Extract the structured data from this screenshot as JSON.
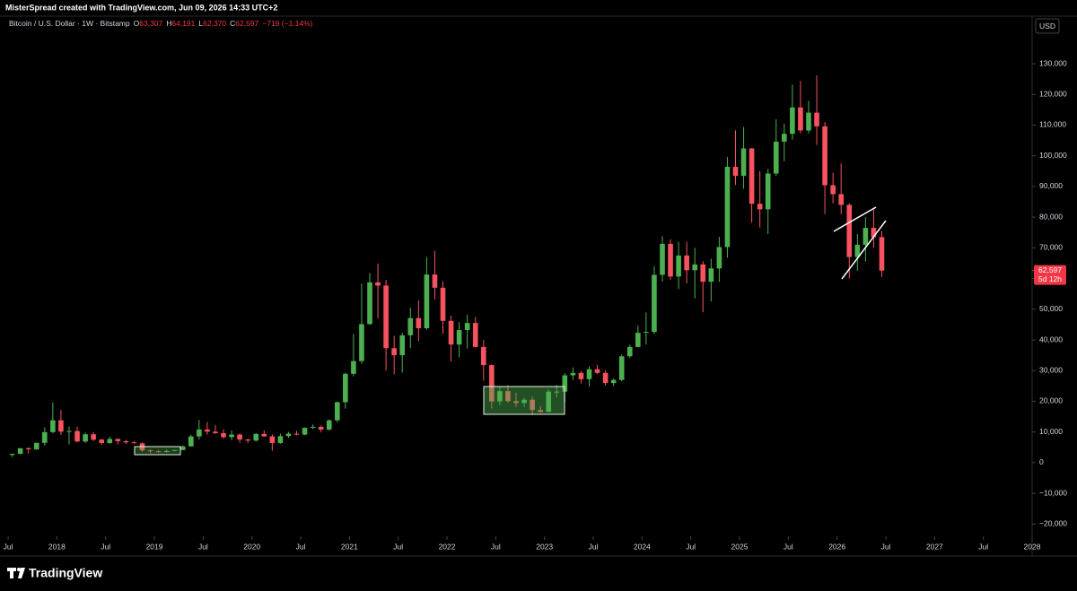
{
  "header": "MisterSpread created with TradingView.com, Jun 09, 2026 14:33 UTC+2",
  "footer": {
    "brand": "TradingView"
  },
  "chart_data": {
    "type": "candlestick",
    "symbol": "Bitcoin / U.S. Dollar · 1W · Bitstamp",
    "ohlc_legend": [
      {
        "key": "O",
        "value": "63,307"
      },
      {
        "key": "H",
        "value": "64,191"
      },
      {
        "key": "L",
        "value": "62,370"
      },
      {
        "key": "C",
        "value": "62,597"
      }
    ],
    "change": "−719 (−1.14%)",
    "currency": "USD",
    "last_price_label": "62,597",
    "countdown": "5d 12h",
    "up_color": "#4caf50",
    "down_color": "#f7525f",
    "x": [
      "2017-07",
      "2017-08",
      "2017-09",
      "2017-10",
      "2017-11",
      "2017-12",
      "2018-01",
      "2018-02",
      "2018-03",
      "2018-04",
      "2018-05",
      "2018-06",
      "2018-07",
      "2018-08",
      "2018-09",
      "2018-10",
      "2018-11",
      "2018-12",
      "2019-01",
      "2019-02",
      "2019-03",
      "2019-04",
      "2019-05",
      "2019-06",
      "2019-07",
      "2019-08",
      "2019-09",
      "2019-10",
      "2019-11",
      "2019-12",
      "2020-01",
      "2020-02",
      "2020-03",
      "2020-04",
      "2020-05",
      "2020-06",
      "2020-07",
      "2020-08",
      "2020-09",
      "2020-10",
      "2020-11",
      "2020-12",
      "2021-01",
      "2021-02",
      "2021-03",
      "2021-04",
      "2021-05",
      "2021-06",
      "2021-07",
      "2021-08",
      "2021-09",
      "2021-10",
      "2021-11",
      "2021-12",
      "2022-01",
      "2022-02",
      "2022-03",
      "2022-04",
      "2022-05",
      "2022-06",
      "2022-07",
      "2022-08",
      "2022-09",
      "2022-10",
      "2022-11",
      "2022-12",
      "2023-01",
      "2023-02",
      "2023-03",
      "2023-04",
      "2023-05",
      "2023-06",
      "2023-07",
      "2023-08",
      "2023-09",
      "2023-10",
      "2023-11",
      "2023-12",
      "2024-01",
      "2024-02",
      "2024-03",
      "2024-04",
      "2024-05",
      "2024-06",
      "2024-07",
      "2024-08",
      "2024-09",
      "2024-10",
      "2024-11",
      "2024-12",
      "2025-01",
      "2025-02",
      "2025-03",
      "2025-04",
      "2025-05",
      "2025-06",
      "2025-07",
      "2025-08",
      "2025-09",
      "2025-10",
      "2025-11",
      "2025-12",
      "2026-01",
      "2026-02",
      "2026-03",
      "2026-04",
      "2026-05",
      "2026-06"
    ],
    "open": [
      2500,
      2870,
      4700,
      4340,
      6450,
      9950,
      13800,
      10100,
      10300,
      6900,
      9240,
      7500,
      6400,
      7730,
      7000,
      6600,
      6300,
      4000,
      3700,
      3450,
      3800,
      4100,
      5300,
      8550,
      10800,
      10100,
      9600,
      8300,
      9150,
      7550,
      7200,
      9350,
      8550,
      6400,
      8650,
      9450,
      9150,
      11350,
      11650,
      10780,
      13800,
      19700,
      28950,
      33100,
      45150,
      58750,
      57700,
      37300,
      35000,
      41500,
      47100,
      43800,
      61300,
      57000,
      46200,
      38500,
      43200,
      45500,
      37700,
      31800,
      19950,
      23300,
      20050,
      19450,
      20500,
      17150,
      16550,
      23150,
      23150,
      28450,
      29250,
      27200,
      30450,
      29250,
      25950,
      26950,
      34650,
      37700,
      42300,
      42600,
      61200,
      71300,
      60650,
      67500,
      62700,
      64600,
      58950,
      63300,
      70250,
      96400,
      93450,
      102400,
      84350,
      82550,
      94200,
      104600,
      107150,
      115750,
      108250,
      114050,
      109600,
      90400,
      87500,
      84000,
      67000,
      71000,
      76500,
      73500
    ],
    "high": [
      2900,
      4750,
      5000,
      6450,
      11500,
      19650,
      17200,
      11800,
      11700,
      9750,
      10000,
      7770,
      8480,
      7760,
      7400,
      7000,
      6550,
      4250,
      4100,
      4200,
      4130,
      5650,
      9100,
      13900,
      13200,
      12300,
      10900,
      10500,
      9500,
      7750,
      9600,
      10500,
      9200,
      9450,
      10050,
      10400,
      11450,
      12450,
      12100,
      14100,
      19900,
      29300,
      41950,
      58350,
      61800,
      64900,
      59550,
      41300,
      42300,
      50500,
      52900,
      67000,
      69000,
      59100,
      47900,
      45800,
      48200,
      47450,
      40000,
      31950,
      24650,
      25200,
      22800,
      21100,
      21450,
      18400,
      23950,
      25250,
      29200,
      31000,
      29850,
      31400,
      31800,
      30100,
      27450,
      35250,
      38450,
      44700,
      48950,
      64000,
      73800,
      72800,
      71950,
      72000,
      70000,
      65650,
      66500,
      73600,
      99600,
      108300,
      109350,
      102500,
      95000,
      95700,
      111900,
      110500,
      123200,
      124400,
      117900,
      126200,
      111000,
      94500,
      97500,
      84500,
      74500,
      80000,
      82500,
      75500
    ],
    "low": [
      1850,
      2700,
      2950,
      4150,
      5500,
      9600,
      9000,
      5900,
      6600,
      6400,
      7000,
      5750,
      6100,
      5880,
      6100,
      6200,
      3500,
      3150,
      3350,
      3380,
      3700,
      4100,
      5300,
      7550,
      9100,
      9350,
      7750,
      7300,
      6500,
      6400,
      6850,
      8450,
      3850,
      6150,
      8100,
      8900,
      8950,
      11000,
      9850,
      10400,
      13200,
      17600,
      28100,
      32300,
      44900,
      47000,
      30000,
      28800,
      29300,
      37300,
      39600,
      43300,
      53200,
      42000,
      32950,
      34300,
      37200,
      37600,
      26700,
      17600,
      18800,
      19550,
      18150,
      18200,
      15500,
      16250,
      16500,
      21400,
      19550,
      26950,
      25800,
      24800,
      28850,
      25150,
      24900,
      26550,
      34100,
      37600,
      38500,
      41900,
      59000,
      59600,
      56550,
      58400,
      53500,
      49000,
      52550,
      58900,
      66800,
      90500,
      89250,
      78200,
      76600,
      74450,
      93400,
      98200,
      105250,
      107300,
      107250,
      103500,
      81000,
      84500,
      81000,
      60000,
      62500,
      65500,
      70000,
      60500
    ],
    "close": [
      2870,
      4700,
      4340,
      6450,
      9950,
      13800,
      10100,
      10300,
      6900,
      9240,
      7500,
      6400,
      7730,
      7000,
      6600,
      6300,
      4000,
      3700,
      3450,
      3800,
      4100,
      5300,
      8550,
      10800,
      10100,
      9600,
      8300,
      9150,
      7550,
      7200,
      9350,
      8550,
      6400,
      8650,
      9450,
      9150,
      11350,
      11650,
      10780,
      13800,
      19700,
      28950,
      33100,
      45150,
      58750,
      57700,
      37300,
      35000,
      41500,
      47100,
      43800,
      61300,
      57000,
      46200,
      38500,
      43200,
      45500,
      37700,
      31800,
      19950,
      23300,
      20050,
      19450,
      20500,
      17150,
      16550,
      23150,
      23150,
      28450,
      29250,
      27200,
      30450,
      29250,
      25950,
      26950,
      34650,
      37700,
      42300,
      42600,
      61200,
      71300,
      60650,
      67500,
      62700,
      64600,
      58950,
      63300,
      70250,
      96400,
      93450,
      102400,
      84350,
      82550,
      94200,
      104600,
      107150,
      115750,
      108250,
      114050,
      109600,
      90400,
      87500,
      84000,
      67000,
      71000,
      76500,
      73500,
      62597
    ],
    "xlim": [
      "2017-06",
      "2028-01"
    ],
    "xticks": [
      {
        "value": "2017-07",
        "label": "Jul"
      },
      {
        "value": "2018-01",
        "label": "2018"
      },
      {
        "value": "2018-07",
        "label": "Jul"
      },
      {
        "value": "2019-01",
        "label": "2019"
      },
      {
        "value": "2019-07",
        "label": "Jul"
      },
      {
        "value": "2020-01",
        "label": "2020"
      },
      {
        "value": "2020-07",
        "label": "Jul"
      },
      {
        "value": "2021-01",
        "label": "2021"
      },
      {
        "value": "2021-07",
        "label": "Jul"
      },
      {
        "value": "2022-01",
        "label": "2022"
      },
      {
        "value": "2022-07",
        "label": "Jul"
      },
      {
        "value": "2023-01",
        "label": "2023"
      },
      {
        "value": "2023-07",
        "label": "Jul"
      },
      {
        "value": "2024-01",
        "label": "2024"
      },
      {
        "value": "2024-07",
        "label": "Jul"
      },
      {
        "value": "2025-01",
        "label": "2025"
      },
      {
        "value": "2025-07",
        "label": "Jul"
      },
      {
        "value": "2026-01",
        "label": "2026"
      },
      {
        "value": "2026-07",
        "label": "Jul"
      },
      {
        "value": "2027-01",
        "label": "2027"
      },
      {
        "value": "2027-07",
        "label": "Jul"
      },
      {
        "value": "2028-01",
        "label": "2028"
      }
    ],
    "ylim": [
      -24000,
      145500
    ],
    "yticks": [
      {
        "value": 130000,
        "label": "130,000"
      },
      {
        "value": 120000,
        "label": "120,000"
      },
      {
        "value": 110000,
        "label": "110,000"
      },
      {
        "value": 100000,
        "label": "100,000"
      },
      {
        "value": 90000,
        "label": "90,000"
      },
      {
        "value": 80000,
        "label": "80,000"
      },
      {
        "value": 70000,
        "label": "70,000"
      },
      {
        "value": 60000,
        "label": "60,000"
      },
      {
        "value": 50000,
        "label": "50,000"
      },
      {
        "value": 40000,
        "label": "40,000"
      },
      {
        "value": 30000,
        "label": "30,000"
      },
      {
        "value": 20000,
        "label": "20,000"
      },
      {
        "value": 10000,
        "label": "10,000"
      },
      0,
      {
        "value": -10000,
        "label": "−10,000"
      },
      {
        "value": -20000,
        "label": "−20,000"
      }
    ]
  }
}
